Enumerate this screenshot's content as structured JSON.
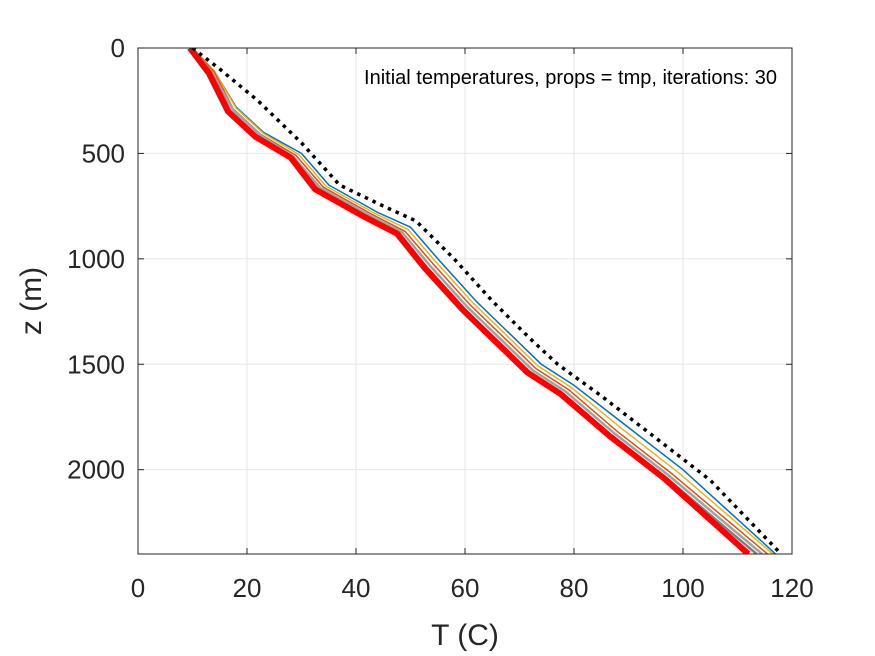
{
  "chart_data": {
    "type": "line",
    "annotation": "Initial temperatures, props = tmp, iterations: 30",
    "xlabel": "T (C)",
    "ylabel": "z (m)",
    "xlim": [
      0,
      120
    ],
    "ylim": [
      0,
      2400
    ],
    "y_reversed": true,
    "grid": true,
    "xticks": [
      "0",
      "20",
      "40",
      "60",
      "80",
      "100",
      "120"
    ],
    "yticks": [
      "0",
      "500",
      "1000",
      "1500",
      "2000"
    ],
    "series": [
      {
        "style": "dotted",
        "color": "#000000",
        "width": 3.5,
        "x": [
          10,
          15,
          22,
          30,
          37,
          45,
          51,
          58,
          65,
          72,
          77,
          85,
          95,
          105,
          118
        ],
        "y": [
          0,
          100,
          250,
          450,
          650,
          750,
          820,
          1000,
          1200,
          1380,
          1500,
          1650,
          1850,
          2050,
          2400
        ]
      },
      {
        "style": "solid",
        "color": "#0072BD",
        "width": 1.5,
        "x": [
          10,
          14,
          18,
          23,
          30,
          35,
          44,
          50,
          55,
          62,
          68,
          74,
          80,
          90,
          100,
          117
        ],
        "y": [
          0,
          110,
          280,
          400,
          500,
          650,
          780,
          850,
          1000,
          1200,
          1350,
          1500,
          1600,
          1800,
          2000,
          2400
        ]
      },
      {
        "style": "solid",
        "color": "#EDB120",
        "width": 1.5,
        "x": [
          10,
          14,
          18,
          23,
          29.5,
          34.5,
          43.5,
          49.5,
          54.5,
          61.5,
          67.5,
          73.5,
          79.5,
          89,
          99,
          116.5
        ],
        "y": [
          0,
          110,
          285,
          405,
          505,
          655,
          785,
          860,
          1010,
          1210,
          1360,
          1510,
          1610,
          1810,
          2010,
          2400
        ]
      },
      {
        "style": "solid",
        "color": "#D95319",
        "width": 1.5,
        "x": [
          10,
          14,
          17.5,
          22.5,
          29,
          34,
          43,
          49,
          54,
          61,
          67,
          73,
          79,
          88,
          98,
          115.5
        ],
        "y": [
          0,
          115,
          290,
          410,
          510,
          660,
          790,
          870,
          1020,
          1220,
          1370,
          1520,
          1620,
          1820,
          2020,
          2400
        ]
      },
      {
        "style": "solid",
        "color": "#A2A2A2",
        "width": 2.5,
        "x": [
          10,
          13.5,
          17.5,
          22.5,
          28.5,
          33.5,
          42.5,
          48.5,
          53.5,
          60.5,
          66.5,
          72.5,
          78.5,
          87.5,
          97.5,
          114.5
        ],
        "y": [
          0,
          115,
          295,
          415,
          515,
          665,
          795,
          875,
          1030,
          1230,
          1380,
          1530,
          1630,
          1830,
          2030,
          2400
        ]
      },
      {
        "style": "solid",
        "color": "#7E7E7E",
        "width": 2.5,
        "x": [
          10,
          13.5,
          17,
          22,
          28.5,
          33,
          42,
          48,
          53,
          60,
          66,
          72,
          78,
          87,
          97,
          113.5
        ],
        "y": [
          0,
          120,
          300,
          420,
          520,
          670,
          800,
          880,
          1040,
          1240,
          1390,
          1540,
          1640,
          1840,
          2040,
          2400
        ]
      },
      {
        "style": "solid",
        "color": "#FF0000",
        "width": 6,
        "x": [
          9.5,
          13,
          16.5,
          21.5,
          28,
          32.5,
          41.5,
          47.5,
          52.5,
          59.5,
          65.5,
          71.5,
          77.5,
          86.5,
          96.5,
          112
        ],
        "y": [
          0,
          120,
          300,
          420,
          520,
          670,
          800,
          880,
          1040,
          1240,
          1390,
          1540,
          1640,
          1840,
          2040,
          2400
        ]
      }
    ]
  }
}
